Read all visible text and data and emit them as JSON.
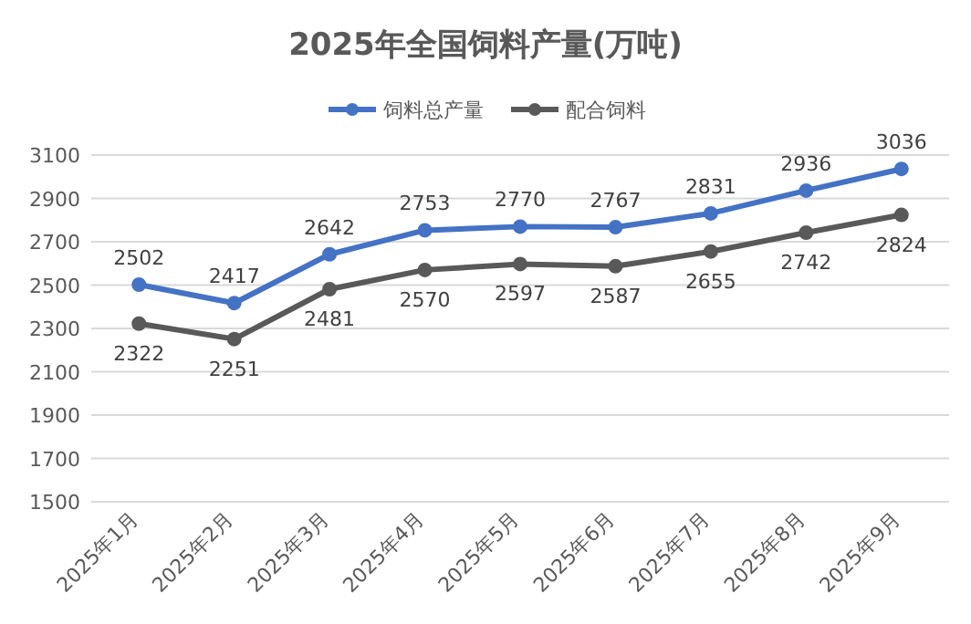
{
  "chart_data": {
    "type": "line",
    "title": "2025年全国饲料产量(万吨)",
    "categories": [
      "2025年1月",
      "2025年2月",
      "2025年3月",
      "2025年4月",
      "2025年5月",
      "2025年6月",
      "2025年7月",
      "2025年8月",
      "2025年9月"
    ],
    "series": [
      {
        "name": "饲料总产量",
        "color": "#4472c4",
        "values": [
          2502,
          2417,
          2642,
          2753,
          2770,
          2767,
          2831,
          2936,
          3036
        ]
      },
      {
        "name": "配合饲料",
        "color": "#595959",
        "values": [
          2322,
          2251,
          2481,
          2570,
          2597,
          2587,
          2655,
          2742,
          2824
        ]
      }
    ],
    "ylim": [
      1500,
      3100
    ],
    "yticks": [
      1500,
      1700,
      1900,
      2100,
      2300,
      2500,
      2700,
      2900,
      3100
    ],
    "grid": "y",
    "legend": "top",
    "marker": "circle",
    "line_style": "solid",
    "data_labels": true
  }
}
